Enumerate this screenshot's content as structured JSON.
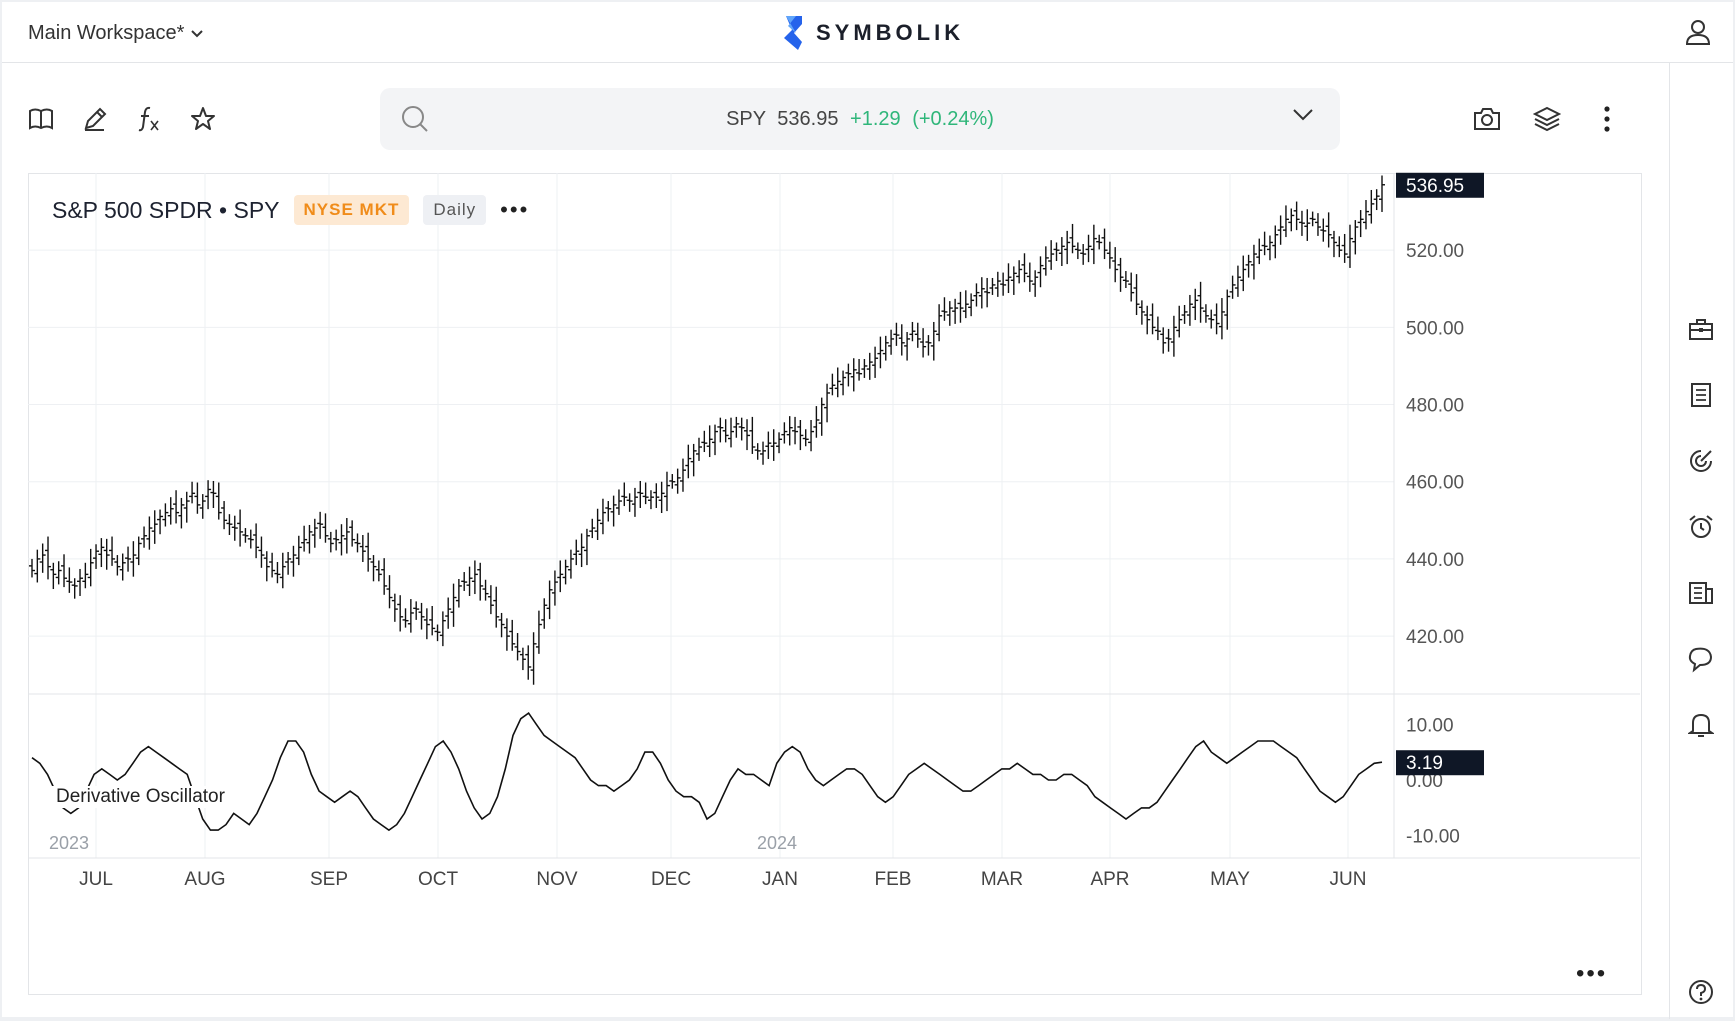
{
  "workspace": {
    "name": "Main Workspace*"
  },
  "brand": {
    "name": "SYMBOLIK",
    "accent": "#3b82f6"
  },
  "toolbar": {
    "left_icons": [
      "book-icon",
      "pencil-icon",
      "function-icon",
      "star-icon"
    ],
    "right_icons": [
      "camera-icon",
      "layers-icon",
      "more-vertical-icon"
    ]
  },
  "quote": {
    "symbol": "SPY",
    "price": "536.95",
    "change": "+1.29",
    "change_pct": "(+0.24%)",
    "up_color": "#2fb67a"
  },
  "instrument": {
    "title": "S&P 500 SPDR • SPY",
    "exchange": "NYSE MKT",
    "timeframe": "Daily",
    "menu": "•••"
  },
  "oscillator": {
    "title": "Derivative Oscillator",
    "last_value": "3.19"
  },
  "sidebar_icons": [
    "briefcase-icon",
    "watchlist-icon",
    "scanner-icon",
    "alarm-icon",
    "news-icon",
    "chat-icon",
    "bell-icon",
    "help-icon"
  ],
  "chart_data": {
    "type": "ohlc",
    "title": "S&P 500 SPDR • SPY",
    "price_axis": {
      "ticks": [
        "520.00",
        "500.00",
        "480.00",
        "460.00",
        "440.00",
        "420.00"
      ],
      "min": 405,
      "max": 540,
      "last_label": "536.95"
    },
    "osc_axis": {
      "ticks": [
        "10.00",
        "0.00",
        "-10.00"
      ],
      "min": -14,
      "max": 14,
      "last_label": "3.19"
    },
    "month_labels": [
      "JUL",
      "AUG",
      "SEP",
      "OCT",
      "NOV",
      "DEC",
      "JAN",
      "FEB",
      "MAR",
      "APR",
      "MAY",
      "JUN"
    ],
    "year_labels": [
      "2023",
      "2024"
    ],
    "closes": [
      437,
      440,
      441,
      438,
      436,
      437,
      435,
      434,
      433,
      435,
      436,
      439,
      442,
      443,
      441,
      440,
      438,
      439,
      440,
      441,
      444,
      446,
      448,
      449,
      451,
      452,
      453,
      452,
      454,
      455,
      457,
      454,
      455,
      458,
      457,
      452,
      450,
      449,
      448,
      447,
      446,
      445,
      443,
      441,
      438,
      437,
      436,
      438,
      440,
      441,
      443,
      445,
      447,
      448,
      449,
      446,
      444,
      445,
      446,
      447,
      445,
      444,
      442,
      440,
      438,
      436,
      433,
      430,
      427,
      425,
      424,
      426,
      427,
      425,
      423,
      422,
      421,
      424,
      427,
      430,
      433,
      434,
      435,
      436,
      433,
      431,
      428,
      425,
      423,
      420,
      418,
      416,
      414,
      412,
      418,
      423,
      428,
      432,
      434,
      436,
      438,
      440,
      442,
      443,
      446,
      448,
      450,
      452,
      453,
      454,
      455,
      456,
      455,
      456,
      457,
      456,
      456,
      456,
      457,
      459,
      460,
      461,
      463,
      466,
      468,
      469,
      470,
      471,
      473,
      474,
      472,
      473,
      475,
      474,
      472,
      469,
      468,
      468,
      470,
      470,
      471,
      473,
      474,
      473,
      472,
      471,
      473,
      476,
      480,
      483,
      485,
      486,
      487,
      488,
      489,
      488,
      490,
      491,
      492,
      494,
      496,
      497,
      498,
      496,
      497,
      499,
      497,
      495,
      496,
      499,
      503,
      504,
      505,
      505,
      505,
      506,
      507,
      509,
      510,
      509,
      511,
      512,
      511,
      513,
      514,
      515,
      514,
      512,
      513,
      516,
      518,
      519,
      520,
      521,
      522,
      521,
      520,
      519,
      521,
      523,
      522,
      520,
      518,
      515,
      513,
      512,
      509,
      506,
      504,
      502,
      500,
      499,
      496,
      497,
      500,
      502,
      504,
      506,
      507,
      505,
      503,
      502,
      501,
      504,
      508,
      511,
      513,
      515,
      517,
      519,
      520,
      521,
      522,
      524,
      526,
      528,
      529,
      528,
      527,
      527,
      528,
      526,
      525,
      524,
      522,
      520,
      519,
      523,
      526,
      528,
      530,
      532,
      534,
      536.95
    ],
    "oscillator_values": [
      4,
      3,
      1,
      -2,
      -5,
      -6,
      -5,
      -2,
      1,
      2,
      1,
      0,
      1,
      3,
      5,
      6,
      5,
      4,
      3,
      2,
      1,
      -3,
      -7,
      -9,
      -9,
      -8,
      -6,
      -7,
      -8,
      -6,
      -3,
      0,
      4,
      7,
      7,
      5,
      1,
      -2,
      -3,
      -4,
      -3,
      -2,
      -3,
      -5,
      -7,
      -8,
      -9,
      -8,
      -6,
      -3,
      0,
      3,
      6,
      7,
      5,
      2,
      -2,
      -5,
      -7,
      -6,
      -3,
      2,
      8,
      11,
      12,
      10,
      8,
      7,
      6,
      5,
      4,
      2,
      0,
      -1,
      -1,
      -2,
      -1,
      0,
      2,
      5,
      5,
      3,
      0,
      -2,
      -3,
      -3,
      -4,
      -7,
      -6,
      -3,
      0,
      2,
      1,
      1,
      0,
      -1,
      3,
      5,
      6,
      5,
      2,
      0,
      -1,
      0,
      1,
      2,
      2,
      1,
      -1,
      -3,
      -4,
      -3,
      -1,
      1,
      2,
      3,
      2,
      1,
      0,
      -1,
      -2,
      -2,
      -1,
      0,
      1,
      2,
      2,
      3,
      2,
      1,
      1,
      0,
      0,
      1,
      1,
      0,
      -1,
      -3,
      -4,
      -5,
      -6,
      -7,
      -6,
      -5,
      -5,
      -4,
      -2,
      0,
      2,
      4,
      6,
      7,
      5,
      4,
      3,
      4,
      5,
      6,
      7,
      7,
      7,
      6,
      5,
      4,
      2,
      0,
      -2,
      -3,
      -4,
      -3,
      -1,
      1,
      2,
      3,
      3.19
    ]
  }
}
